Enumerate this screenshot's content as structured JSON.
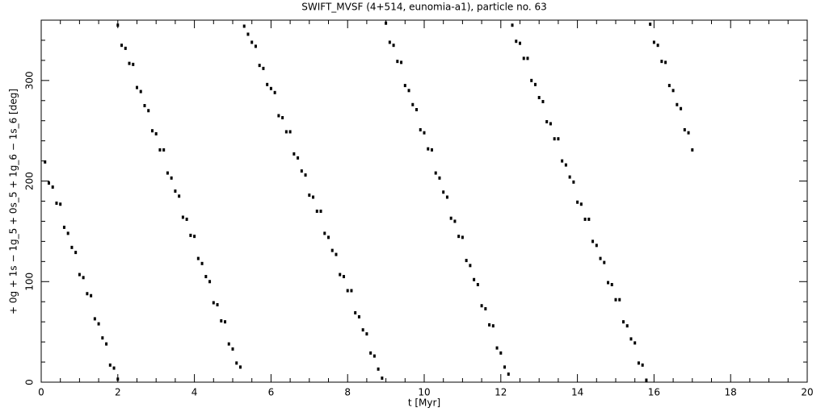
{
  "chart_data": {
    "type": "scatter",
    "title": "SWIFT_MVSF (4+514, eunomia-a1), particle no. 63",
    "x_label": "t [Myr]",
    "y_label": "+ 0g + 1s − 1g_5 + 0s_5 + 1g_6 − 1s_6 [deg]",
    "color": "#000000",
    "xlim": [
      0,
      20
    ],
    "xticks": [
      0,
      2,
      4,
      6,
      8,
      10,
      12,
      14,
      16,
      18,
      20
    ],
    "ylim": [
      0,
      360
    ],
    "yticks": [
      0,
      100,
      200,
      300
    ],
    "x": [
      0.1,
      0.2,
      0.3,
      0.4,
      0.5,
      0.6,
      0.7,
      0.8,
      0.9,
      1.0,
      1.1,
      1.2,
      1.3,
      1.4,
      1.5,
      1.6,
      1.7,
      1.8,
      1.9,
      2.0,
      2.0,
      2.1,
      2.2,
      2.3,
      2.4,
      2.5,
      2.6,
      2.7,
      2.8,
      2.9,
      3.0,
      3.1,
      3.2,
      3.3,
      3.4,
      3.5,
      3.6,
      3.7,
      3.8,
      3.9,
      4.0,
      4.1,
      4.2,
      4.3,
      4.4,
      4.5,
      4.6,
      4.7,
      4.8,
      4.9,
      5.0,
      5.1,
      5.2,
      5.3,
      5.4,
      5.5,
      5.6,
      5.7,
      5.8,
      5.9,
      6.0,
      6.1,
      6.2,
      6.3,
      6.4,
      6.5,
      6.6,
      6.7,
      6.8,
      6.9,
      7.0,
      7.1,
      7.2,
      7.3,
      7.4,
      7.5,
      7.6,
      7.7,
      7.8,
      7.9,
      8.0,
      8.1,
      8.2,
      8.3,
      8.4,
      8.5,
      8.6,
      8.7,
      8.8,
      8.9,
      9.0,
      9.1,
      9.2,
      9.3,
      9.4,
      9.5,
      9.6,
      9.7,
      9.8,
      9.9,
      10.0,
      10.1,
      10.2,
      10.3,
      10.4,
      10.5,
      10.6,
      10.7,
      10.8,
      10.9,
      11.0,
      11.1,
      11.2,
      11.3,
      11.4,
      11.5,
      11.6,
      11.7,
      11.8,
      11.9,
      12.0,
      12.1,
      12.2,
      12.3,
      12.4,
      12.5,
      12.6,
      12.7,
      12.8,
      12.9,
      13.0,
      13.1,
      13.2,
      13.3,
      13.4,
      13.5,
      13.6,
      13.7,
      13.8,
      13.9,
      14.0,
      14.1,
      14.2,
      14.3,
      14.4,
      14.5,
      14.6,
      14.7,
      14.8,
      14.9,
      15.0,
      15.1,
      15.2,
      15.3,
      15.4,
      15.5,
      15.6,
      15.7,
      15.8,
      15.9,
      16.0,
      16.1,
      16.2,
      16.3,
      16.4,
      16.5,
      16.6,
      16.7,
      16.8,
      16.9,
      17.0
    ],
    "y": [
      219,
      198,
      194,
      178,
      177,
      154,
      148,
      134,
      129,
      107,
      104,
      88,
      86,
      63,
      58,
      44,
      38,
      17,
      14,
      3,
      355,
      335,
      332,
      317,
      316,
      293,
      289,
      275,
      270,
      250,
      247,
      231,
      231,
      208,
      203,
      190,
      185,
      164,
      162,
      146,
      145,
      123,
      118,
      105,
      100,
      79,
      77,
      61,
      60,
      38,
      33,
      19,
      15,
      354,
      346,
      338,
      334,
      315,
      312,
      296,
      292,
      288,
      265,
      263,
      249,
      249,
      227,
      223,
      210,
      206,
      186,
      184,
      170,
      170,
      148,
      144,
      131,
      127,
      107,
      105,
      91,
      91,
      69,
      65,
      52,
      48,
      29,
      26,
      13,
      4,
      357,
      338,
      335,
      319,
      318,
      295,
      290,
      276,
      271,
      251,
      248,
      232,
      231,
      208,
      203,
      189,
      184,
      163,
      160,
      145,
      144,
      121,
      116,
      102,
      97,
      76,
      73,
      57,
      56,
      34,
      29,
      15,
      8,
      355,
      339,
      337,
      322,
      322,
      300,
      296,
      283,
      279,
      259,
      257,
      242,
      242,
      220,
      216,
      204,
      199,
      179,
      177,
      162,
      162,
      140,
      136,
      123,
      119,
      99,
      97,
      82,
      82,
      60,
      56,
      43,
      39,
      19,
      17,
      2,
      356,
      338,
      335,
      319,
      318,
      295,
      290,
      276,
      272,
      251,
      248,
      231
    ]
  }
}
